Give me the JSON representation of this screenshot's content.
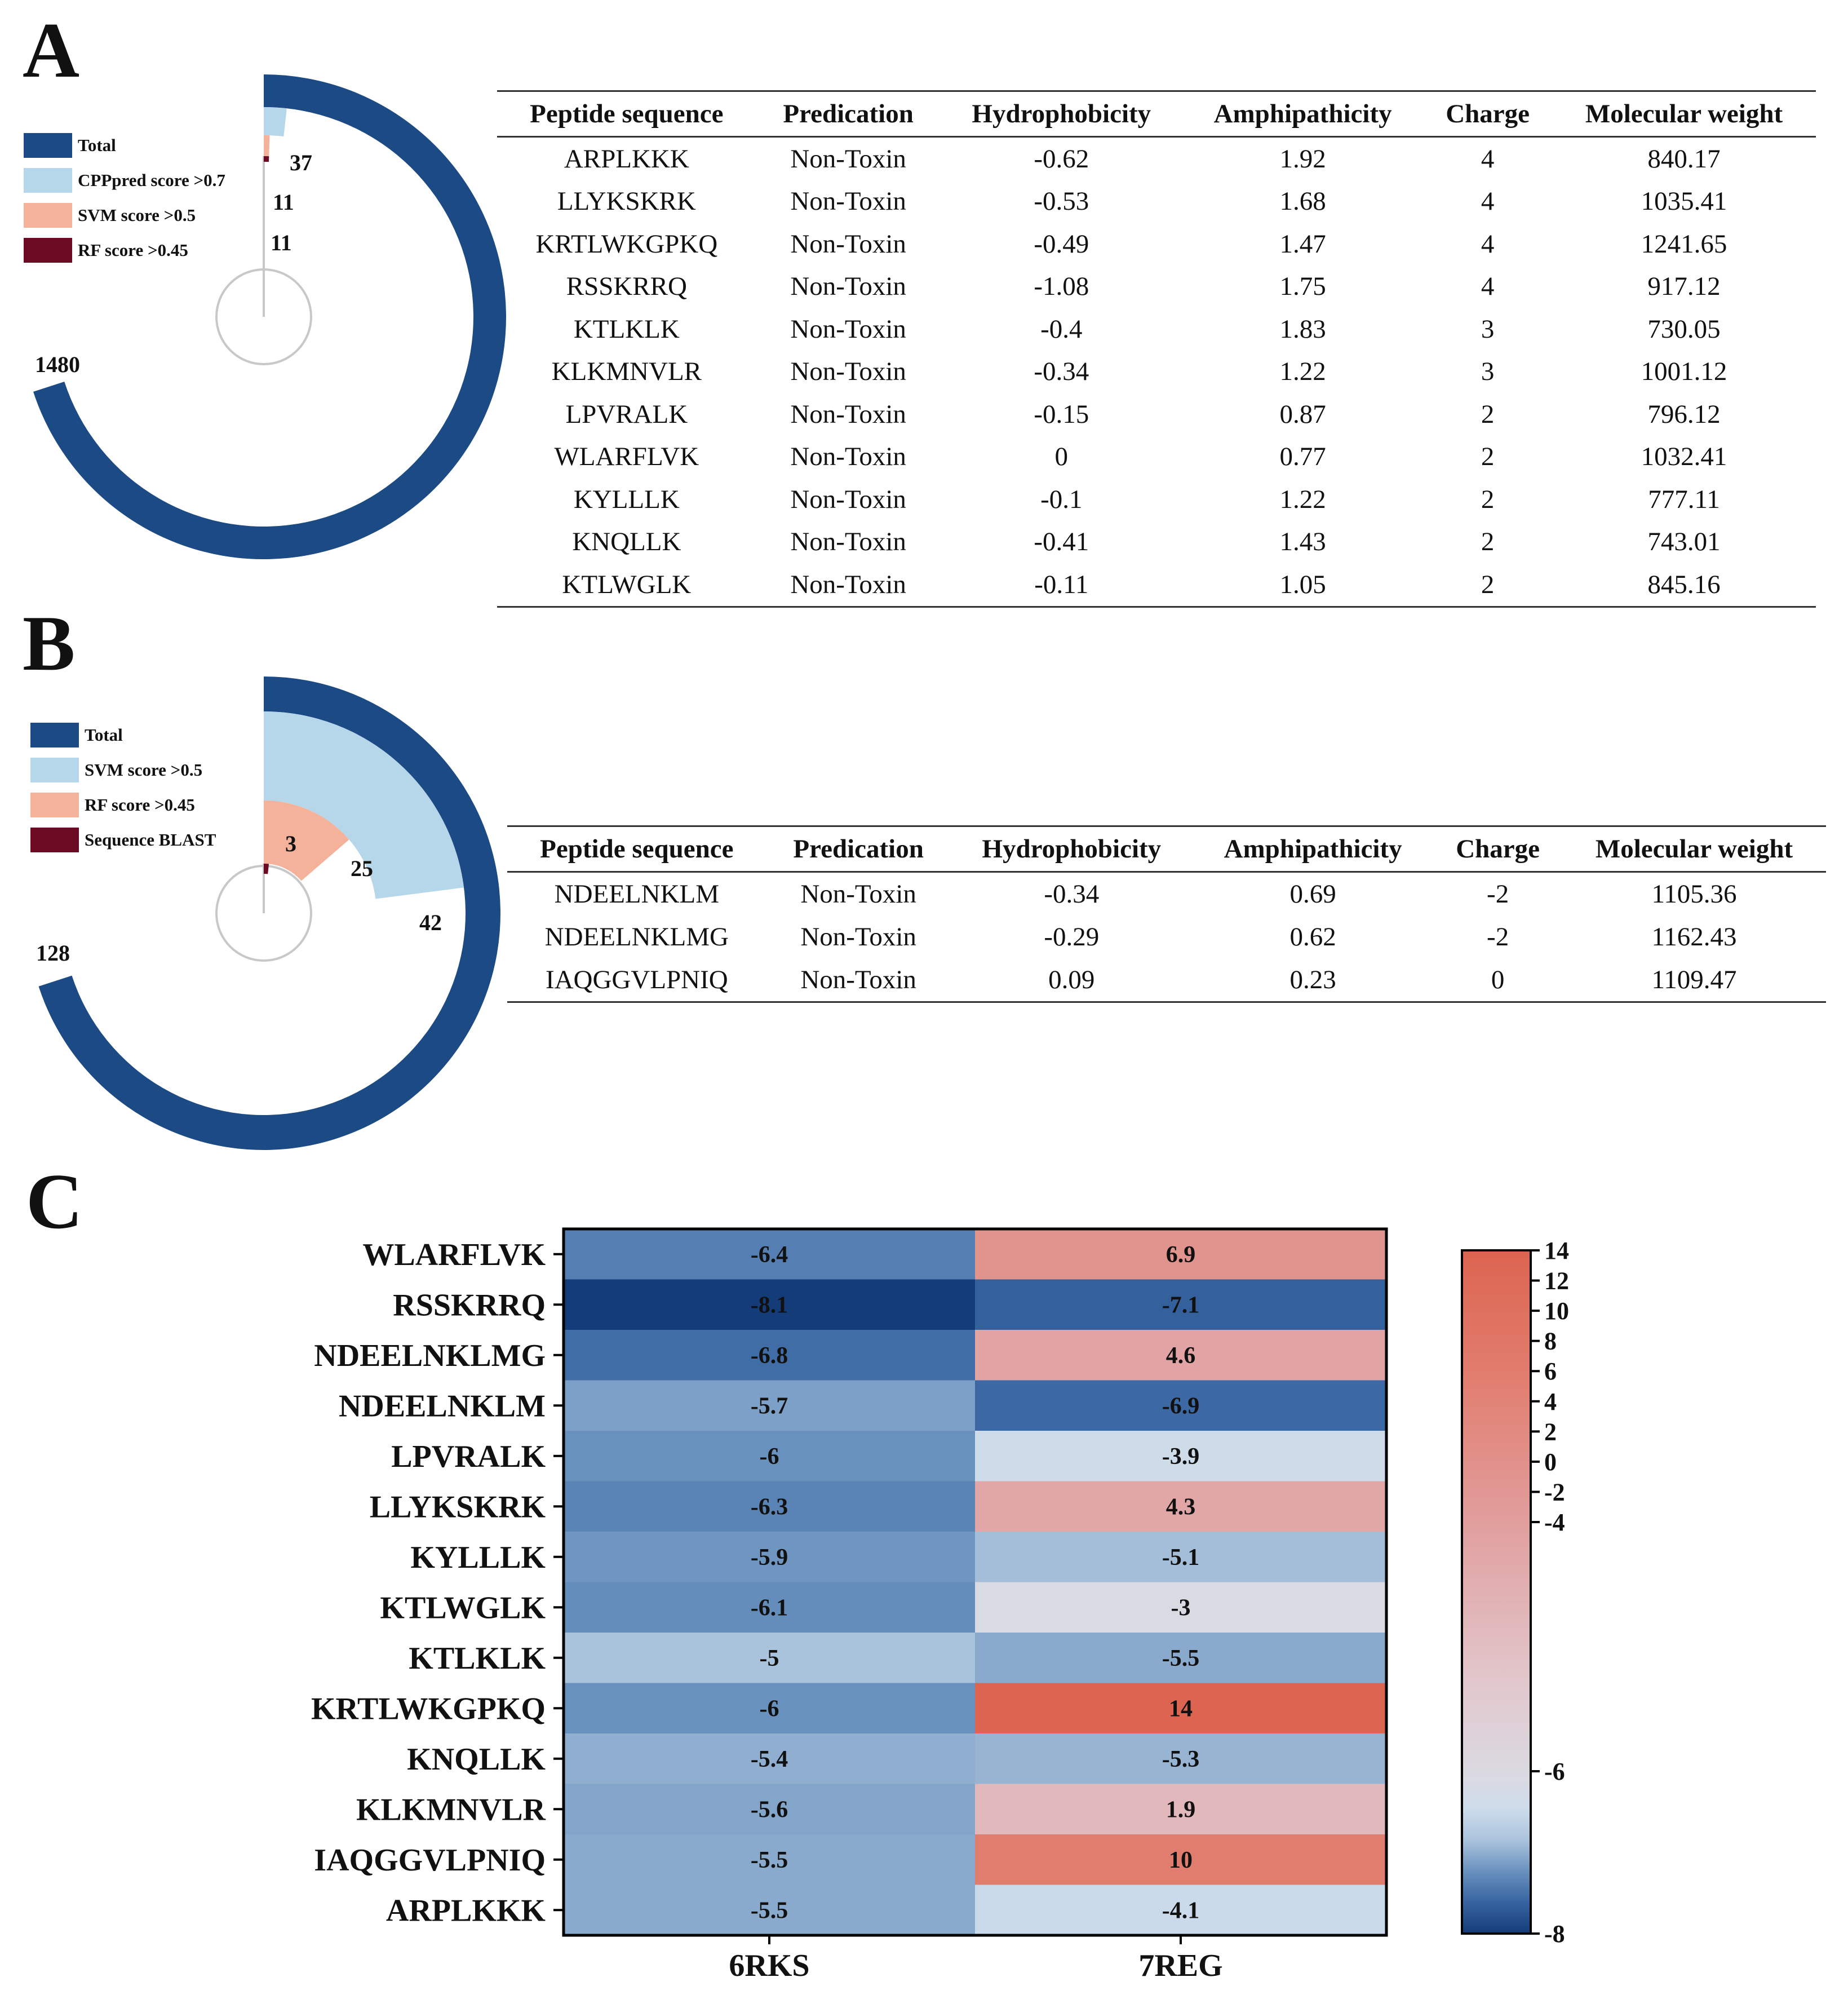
{
  "panels": {
    "a": "A",
    "b": "B",
    "c": "C"
  },
  "colors": {
    "total": "#1b4a84",
    "light_blue": "#b6d6e9",
    "salmon": "#f4b29a",
    "maroon": "#6b0a22",
    "ring": "#c8c8c8"
  },
  "donut_a": {
    "legend": [
      {
        "label": "Total",
        "color": "#1b4a84"
      },
      {
        "label": "CPPpred score >0.7",
        "color": "#b6d6e9"
      },
      {
        "label": "SVM score >0.5",
        "color": "#f4b29a"
      },
      {
        "label": "RF score >0.45",
        "color": "#6b0a22"
      }
    ],
    "labels": {
      "total": "1480",
      "s1": "37",
      "s2": "11",
      "s3": "11"
    }
  },
  "donut_b": {
    "legend": [
      {
        "label": "Total",
        "color": "#1b4a84"
      },
      {
        "label": "SVM score >0.5",
        "color": "#b6d6e9"
      },
      {
        "label": "RF score >0.45",
        "color": "#f4b29a"
      },
      {
        "label": "Sequence BLAST",
        "color": "#6b0a22"
      }
    ],
    "labels": {
      "total": "128",
      "s1": "42",
      "s2": "25",
      "s3": "3"
    }
  },
  "table_a": {
    "headers": [
      "Peptide sequence",
      "Predication",
      "Hydrophobicity",
      "Amphipathicity",
      "Charge",
      "Molecular weight"
    ],
    "rows": [
      [
        "ARPLKKK",
        "Non-Toxin",
        "-0.62",
        "1.92",
        "4",
        "840.17"
      ],
      [
        "LLYKSKRK",
        "Non-Toxin",
        "-0.53",
        "1.68",
        "4",
        "1035.41"
      ],
      [
        "KRTLWKGPKQ",
        "Non-Toxin",
        "-0.49",
        "1.47",
        "4",
        "1241.65"
      ],
      [
        "RSSKRRQ",
        "Non-Toxin",
        "-1.08",
        "1.75",
        "4",
        "917.12"
      ],
      [
        "KTLKLK",
        "Non-Toxin",
        "-0.4",
        "1.83",
        "3",
        "730.05"
      ],
      [
        "KLKMNVLR",
        "Non-Toxin",
        "-0.34",
        "1.22",
        "3",
        "1001.12"
      ],
      [
        "LPVRALK",
        "Non-Toxin",
        "-0.15",
        "0.87",
        "2",
        "796.12"
      ],
      [
        "WLARFLVK",
        "Non-Toxin",
        "0",
        "0.77",
        "2",
        "1032.41"
      ],
      [
        "KYLLLK",
        "Non-Toxin",
        "-0.1",
        "1.22",
        "2",
        "777.11"
      ],
      [
        "KNQLLK",
        "Non-Toxin",
        "-0.41",
        "1.43",
        "2",
        "743.01"
      ],
      [
        "KTLWGLK",
        "Non-Toxin",
        "-0.11",
        "1.05",
        "2",
        "845.16"
      ]
    ]
  },
  "table_b": {
    "headers": [
      "Peptide sequence",
      "Predication",
      "Hydrophobicity",
      "Amphipathicity",
      "Charge",
      "Molecular weight"
    ],
    "rows": [
      [
        "NDEELNKLM",
        "Non-Toxin",
        "-0.34",
        "0.69",
        "-2",
        "1105.36"
      ],
      [
        "NDEELNKLMG",
        "Non-Toxin",
        "-0.29",
        "0.62",
        "-2",
        "1162.43"
      ],
      [
        "IAQGGVLPNIQ",
        "Non-Toxin",
        "0.09",
        "0.23",
        "0",
        "1109.47"
      ]
    ]
  },
  "chart_data": [
    {
      "type": "pie",
      "title": "A",
      "categories": [
        "Total",
        "CPPpred score >0.7",
        "SVM score >0.5",
        "RF score >0.45"
      ],
      "values": [
        1480,
        37,
        11,
        11
      ]
    },
    {
      "type": "pie",
      "title": "B",
      "categories": [
        "Total",
        "SVM score >0.5",
        "RF score >0.45",
        "Sequence BLAST"
      ],
      "values": [
        128,
        42,
        25,
        3
      ]
    },
    {
      "type": "heatmap",
      "title": "C",
      "x": [
        "6RKS",
        "7REG"
      ],
      "y": [
        "WLARFLVK",
        "RSSKRRQ",
        "NDEELNKLMG",
        "NDEELNKLM",
        "LPVRALK",
        "LLYKSKRK",
        "KYLLLK",
        "KTLWGLK",
        "KTLKLK",
        "KRTLWKGPKQ",
        "KNQLLK",
        "KLKMNVLR",
        "IAQGGVLPNIQ",
        "ARPLKKK"
      ],
      "values": [
        [
          -6.4,
          6.9
        ],
        [
          -8.1,
          -7.1
        ],
        [
          -6.8,
          4.6
        ],
        [
          -5.7,
          -6.9
        ],
        [
          -6,
          -3.9
        ],
        [
          -6.3,
          4.3
        ],
        [
          -5.9,
          -5.1
        ],
        [
          -6.1,
          -3
        ],
        [
          -5,
          -5.5
        ],
        [
          -6,
          14
        ],
        [
          -5.4,
          -5.3
        ],
        [
          -5.6,
          1.9
        ],
        [
          -5.5,
          10
        ],
        [
          -5.5,
          -4.1
        ]
      ],
      "colorbar": {
        "range": [
          -8,
          14
        ],
        "ticks_upper": [
          14,
          12,
          10,
          8,
          6,
          4,
          2,
          0,
          -2,
          -4
        ],
        "ticks_lower": [
          -6,
          -8
        ]
      }
    }
  ]
}
